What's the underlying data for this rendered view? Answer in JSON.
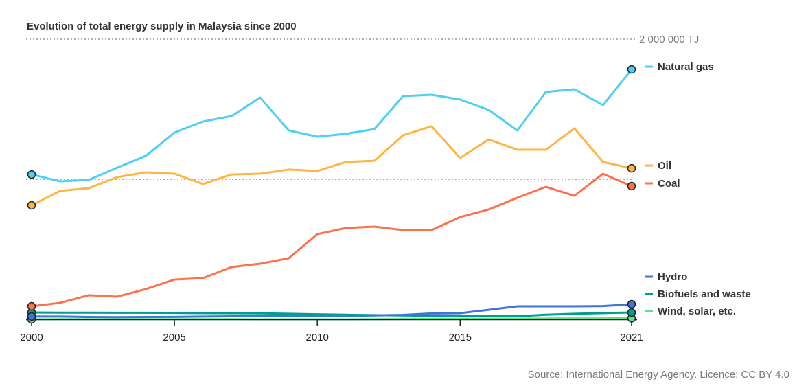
{
  "title": "Evolution of total energy supply in Malaysia since 2000",
  "source": "Source: International Energy Agency. Licence: CC BY 4.0",
  "chart_data": {
    "type": "line",
    "title": "Evolution of total energy supply in Malaysia since 2000",
    "xlabel": "",
    "ylabel": "",
    "unit": "TJ",
    "max_label": "2 000 000 TJ",
    "ylim": [
      0,
      2000000
    ],
    "xlim": [
      2000,
      2021
    ],
    "gridlines": [
      1000000,
      2000000
    ],
    "x_ticks": [
      2000,
      2005,
      2010,
      2015,
      2021
    ],
    "x_tick_labels": [
      "2000",
      "2005",
      "2010",
      "2015",
      "2021"
    ],
    "legend_position": "right",
    "x": [
      2000,
      2001,
      2002,
      2003,
      2004,
      2005,
      2006,
      2007,
      2008,
      2009,
      2010,
      2011,
      2012,
      2013,
      2014,
      2015,
      2016,
      2017,
      2018,
      2019,
      2020,
      2021
    ],
    "series": [
      {
        "name": "Natural gas",
        "color": "#4fcff5",
        "values": [
          1034000,
          985000,
          995000,
          1083000,
          1167000,
          1333000,
          1412000,
          1451000,
          1583000,
          1348000,
          1304000,
          1324000,
          1358000,
          1593000,
          1603000,
          1569000,
          1495000,
          1348000,
          1623000,
          1642000,
          1529000,
          1784000
        ]
      },
      {
        "name": "Oil",
        "color": "#ffb444",
        "values": [
          814000,
          917000,
          936000,
          1015000,
          1049000,
          1039000,
          966000,
          1034000,
          1039000,
          1069000,
          1059000,
          1123000,
          1132000,
          1314000,
          1378000,
          1152000,
          1284000,
          1211000,
          1211000,
          1363000,
          1123000,
          1078000
        ]
      },
      {
        "name": "Coal",
        "color": "#ff704a",
        "values": [
          93000,
          118000,
          172000,
          162000,
          216000,
          284000,
          294000,
          373000,
          397000,
          436000,
          608000,
          652000,
          662000,
          637000,
          637000,
          730000,
          784000,
          868000,
          946000,
          882000,
          1039000,
          951000
        ]
      },
      {
        "name": "Hydro",
        "color": "#3f74d8",
        "values": [
          20000,
          20000,
          17000,
          16000,
          17000,
          18000,
          20000,
          22000,
          24000,
          26000,
          25000,
          25000,
          28000,
          32000,
          42000,
          44000,
          68000,
          93000,
          93000,
          93000,
          95000,
          108000
        ]
      },
      {
        "name": "Biofuels and waste",
        "color": "#009e90",
        "values": [
          49000,
          48000,
          48000,
          47000,
          47000,
          46000,
          45000,
          44000,
          43000,
          40000,
          36000,
          33000,
          30000,
          28000,
          25000,
          25000,
          23000,
          22000,
          33000,
          40000,
          45000,
          49000
        ]
      },
      {
        "name": "Wind, solar, etc.",
        "color": "#5de08c",
        "values": [
          0,
          1000,
          1000,
          1000,
          1000,
          1000,
          1000,
          1000,
          0,
          0,
          0,
          0,
          1000,
          2000,
          3000,
          3000,
          4000,
          5000,
          6000,
          7000,
          7000,
          8000
        ]
      }
    ]
  }
}
